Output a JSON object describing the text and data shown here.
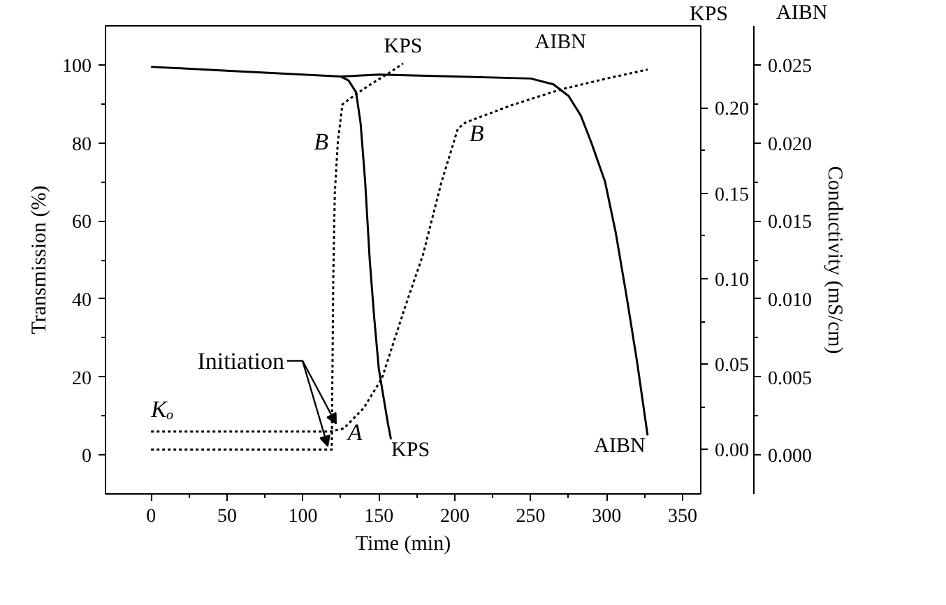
{
  "chart_data": {
    "type": "line",
    "xlabel": "Time (min)",
    "ylabel": "Transmission (%)",
    "y2label": "KPS",
    "y3label": "AIBN",
    "xlim": [
      -30,
      362
    ],
    "xticks": [
      0,
      50,
      100,
      150,
      200,
      250,
      300,
      350
    ],
    "ylim": [
      -10,
      110
    ],
    "yticks": [
      0,
      20,
      40,
      60,
      80,
      100
    ],
    "y2lim": [
      -0.026,
      0.248
    ],
    "y2ticks": [
      {
        "value": 0,
        "label": "0.00"
      },
      {
        "value": 0.05,
        "label": "0.05"
      },
      {
        "value": 0.1,
        "label": "0.10"
      },
      {
        "value": 0.15,
        "label": "0.15"
      },
      {
        "value": 0.2,
        "label": "0.20"
      }
    ],
    "y3lim": [
      -0.0025,
      0.0275
    ],
    "y3ticks": [
      {
        "value": 0,
        "label": "0.000"
      },
      {
        "value": 0.005,
        "label": "0.005"
      },
      {
        "value": 0.01,
        "label": "0.010"
      },
      {
        "value": 0.015,
        "label": "0.015"
      },
      {
        "value": 0.02,
        "label": "0.020"
      },
      {
        "value": 0.025,
        "label": "0.025"
      }
    ],
    "grid": false,
    "marker": "none",
    "series": [
      {
        "color": "#000000",
        "line_style": "solid",
        "x": [
          0,
          50,
          100,
          125,
          130,
          135,
          138,
          141,
          144,
          147,
          150,
          153,
          156,
          158
        ],
        "values": [
          99.5,
          98.5,
          97.5,
          97,
          96,
          93,
          85,
          70,
          50,
          35,
          22,
          15,
          8,
          4
        ]
      },
      {
        "color": "#000000",
        "line_style": "solid",
        "x": [
          125,
          150,
          200,
          250,
          265,
          275,
          283,
          290,
          299,
          306,
          313,
          320,
          327
        ],
        "values": [
          97,
          97.5,
          97,
          96.5,
          95,
          92,
          87,
          80,
          70,
          57,
          41,
          24,
          5
        ]
      },
      {
        "color": "#000000",
        "line_style": "dotted",
        "axis": "y2",
        "x": [
          0,
          50,
          100,
          119,
          119.5,
          120,
          121,
          123,
          126,
          135,
          145,
          156,
          166
        ],
        "values": [
          0,
          0,
          0,
          0,
          0.05,
          0.1,
          0.15,
          0.18,
          0.202,
          0.208,
          0.214,
          0.22,
          0.226
        ]
      },
      {
        "color": "#000000",
        "line_style": "dotted",
        "axis": "y3",
        "x": [
          0,
          50,
          100,
          118,
          127,
          140,
          152,
          167,
          179,
          191,
          202,
          207,
          237,
          269,
          299,
          327
        ],
        "values": [
          0.0015,
          0.0015,
          0.0015,
          0.0015,
          0.0017,
          0.003,
          0.0049,
          0.0094,
          0.0128,
          0.0174,
          0.0209,
          0.0213,
          0.0224,
          0.0234,
          0.0241,
          0.0247
        ]
      }
    ],
    "annotations": [
      "Conductivity (mS/cm)",
      {
        "text": "Initiation",
        "x": 120,
        "y": 8
      },
      "Kₒ",
      "A",
      "B",
      "B",
      "KPS",
      "AIBN",
      "KPS",
      "AIBN"
    ]
  }
}
